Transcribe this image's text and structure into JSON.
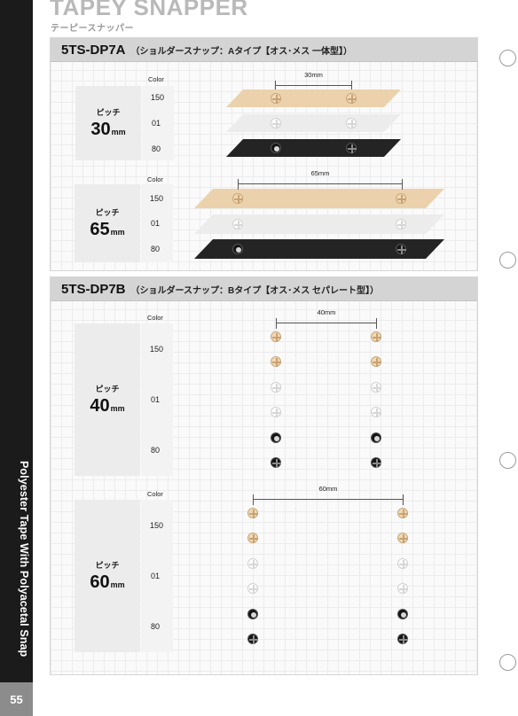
{
  "header": {
    "brand": "TAPEY SNAPPER",
    "subtitle": "テーピースナッパー"
  },
  "side": {
    "vertical_text": "Polyester Tape With Polyacetal Snap",
    "page_number": "55"
  },
  "colors": {
    "150": "#ebd2ad",
    "01": "#ececec",
    "80": "#242424",
    "band": "#1b1b1b",
    "page_box": "#8c8c8c"
  },
  "sections": [
    {
      "code": "5TS-DP7A",
      "desc": "（ショルダースナップ：Aタイプ【オス･メス 一体型】）",
      "groups": [
        {
          "pitch_label": "ピッチ",
          "pitch": "30",
          "unit": "mm",
          "color_header": "Color",
          "dimension": "30mm",
          "colors": [
            "150",
            "01",
            "80"
          ]
        },
        {
          "pitch_label": "ピッチ",
          "pitch": "65",
          "unit": "mm",
          "color_header": "Color",
          "dimension": "65mm",
          "colors": [
            "150",
            "01",
            "80"
          ]
        }
      ]
    },
    {
      "code": "5TS-DP7B",
      "desc": "（ショルダースナップ：Bタイプ【オス･メス セパレート型】）",
      "groups": [
        {
          "pitch_label": "ピッチ",
          "pitch": "40",
          "unit": "mm",
          "color_header": "Color",
          "dimension": "40mm",
          "colors": [
            "150",
            "01",
            "80"
          ]
        },
        {
          "pitch_label": "ピッチ",
          "pitch": "60",
          "unit": "mm",
          "color_header": "Color",
          "dimension": "60mm",
          "colors": [
            "150",
            "01",
            "80"
          ]
        }
      ]
    }
  ]
}
